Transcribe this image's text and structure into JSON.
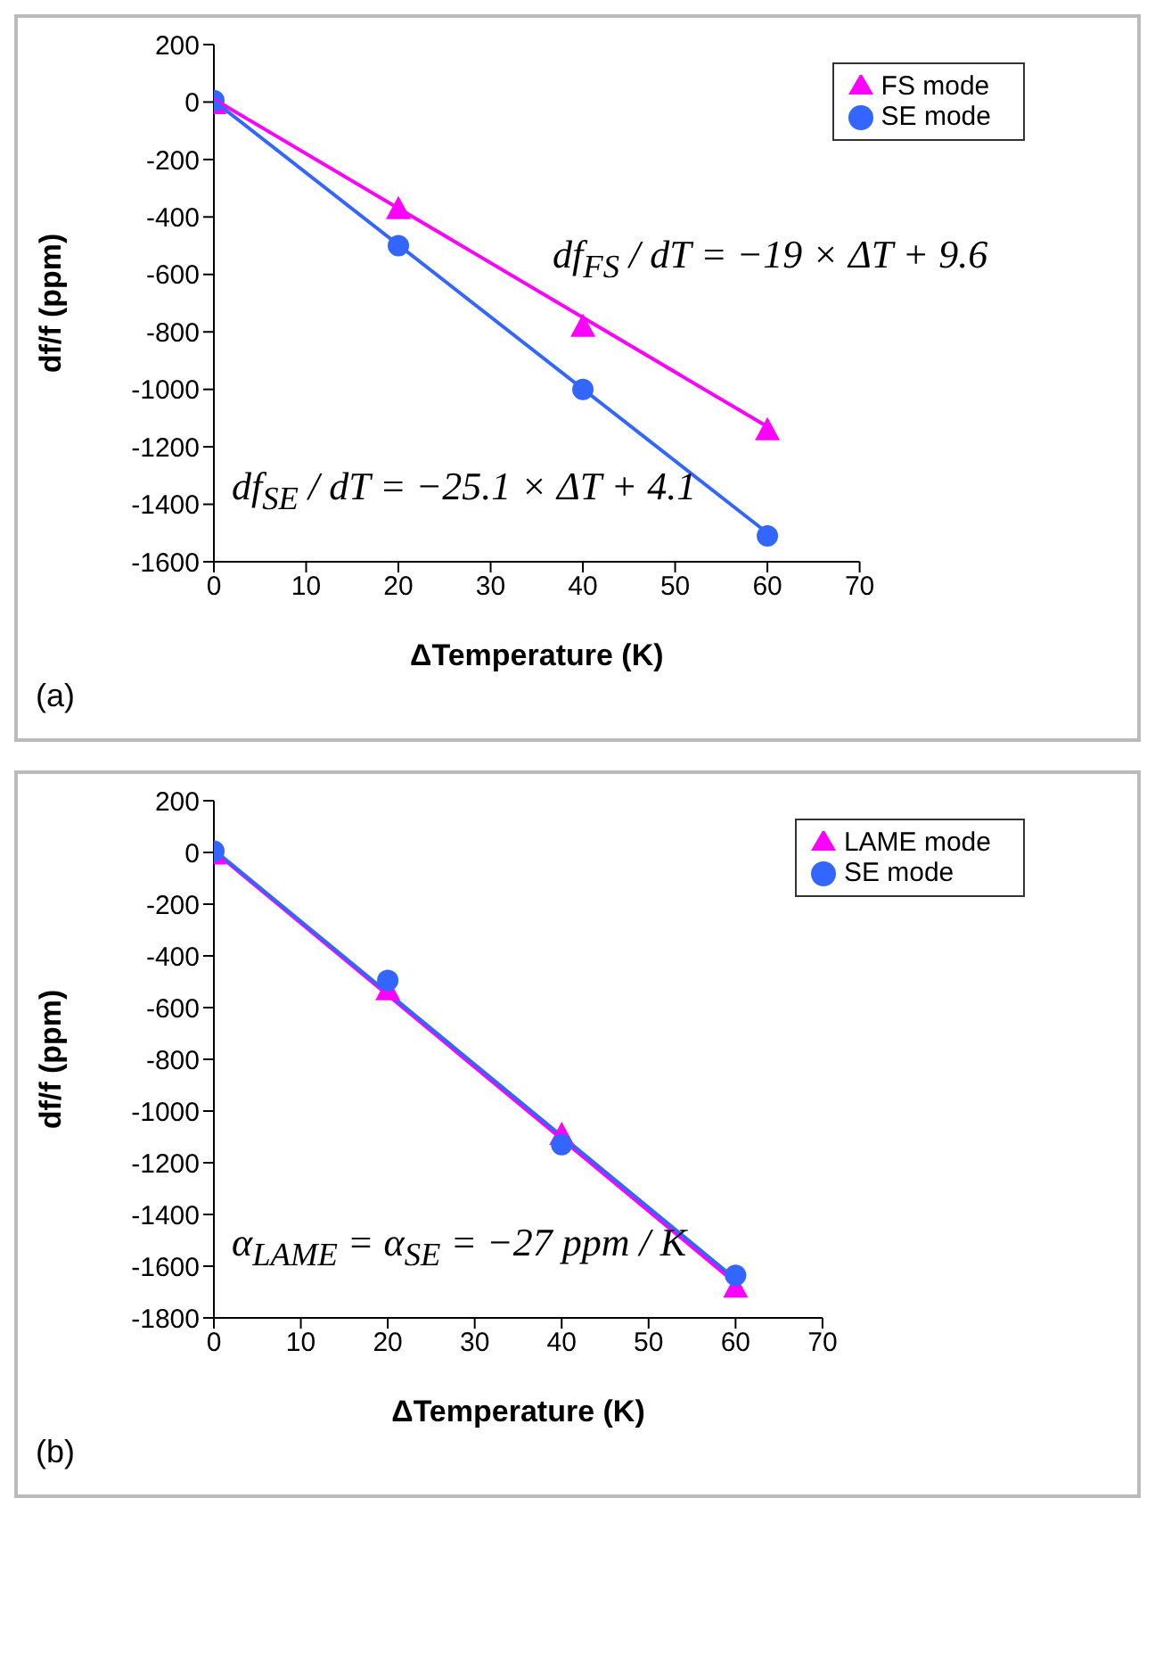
{
  "chart_data": [
    {
      "type": "scatter",
      "xlabel": "ΔTemperature (K)",
      "ylabel": "df/f (ppm)",
      "xlim": [
        0,
        70
      ],
      "xticks": [
        0,
        10,
        20,
        30,
        40,
        50,
        60,
        70
      ],
      "ylim": [
        -1600,
        200
      ],
      "yticks": [
        -1600,
        -1400,
        -1200,
        -1000,
        -800,
        -600,
        -400,
        -200,
        0,
        200
      ],
      "grid": false,
      "legend": "top right",
      "series": [
        {
          "name": "FS mode",
          "color": "#ff00ff",
          "marker": "triangle",
          "x": [
            0,
            20,
            40,
            60
          ],
          "values": [
            -5,
            -370,
            -780,
            -1140
          ]
        },
        {
          "name": "SE mode",
          "color": "#3366ff",
          "marker": "circle",
          "x": [
            0,
            20,
            40,
            60
          ],
          "values": [
            5,
            -500,
            -1000,
            -1510
          ]
        },
        {
          "type": "line",
          "color": "#ff00ff",
          "marker": "none",
          "x": [
            0,
            60
          ],
          "values": [
            10,
            -1130
          ]
        },
        {
          "type": "line",
          "color": "#3366ff",
          "marker": "none",
          "x": [
            0,
            60
          ],
          "values": [
            4,
            -1500
          ]
        }
      ],
      "annotations": [
        "df$_{FS}$ / dT = −19 × ΔT + 9.6",
        "df$_{SE}$ / dT = −25.1 × ΔT + 4.1",
        "(a)"
      ]
    },
    {
      "type": "scatter",
      "xlabel": "ΔTemperature (K)",
      "ylabel": "df/f (ppm)",
      "xlim": [
        0,
        70
      ],
      "xticks": [
        0,
        10,
        20,
        30,
        40,
        50,
        60,
        70
      ],
      "ylim": [
        -1800,
        200
      ],
      "yticks": [
        -1800,
        -1600,
        -1400,
        -1200,
        -1000,
        -800,
        -600,
        -400,
        -200,
        0,
        200
      ],
      "grid": false,
      "legend": "top right",
      "series": [
        {
          "type": "line",
          "color": "#ff00ff",
          "marker": "none",
          "x": [
            0,
            60
          ],
          "values": [
            5,
            -1665
          ]
        },
        {
          "type": "line",
          "color": "#3366ff",
          "marker": "none",
          "x": [
            0,
            60
          ],
          "values": [
            10,
            -1650
          ]
        },
        {
          "name": "LAME mode",
          "color": "#ff00ff",
          "marker": "triangle",
          "x": [
            0,
            20,
            40,
            60
          ],
          "values": [
            -5,
            -530,
            -1090,
            -1680
          ]
        },
        {
          "name": "SE mode",
          "color": "#3366ff",
          "marker": "circle",
          "x": [
            0,
            20,
            40,
            60
          ],
          "values": [
            5,
            -495,
            -1130,
            -1635
          ]
        }
      ],
      "annotations": [
        "α$_{LAME}$ = α$_{SE}$ = −27 ppm / K",
        "(b)"
      ]
    }
  ]
}
